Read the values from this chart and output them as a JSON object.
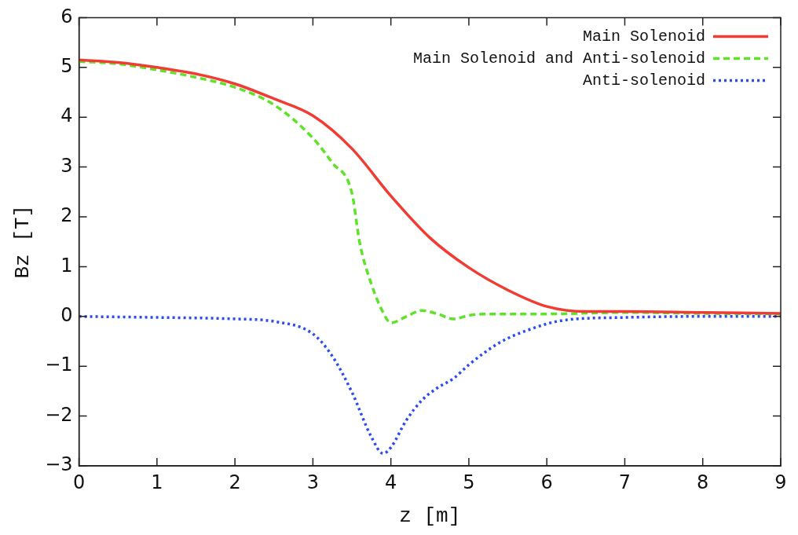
{
  "chart_data": {
    "type": "line",
    "xlabel": "z [m]",
    "ylabel": "Bz [T]",
    "xlim": [
      0,
      9
    ],
    "xticks": [
      0,
      1,
      2,
      3,
      4,
      5,
      6,
      7,
      8,
      9
    ],
    "ylim": [
      -3,
      6
    ],
    "yticks": [
      -3,
      -2,
      -1,
      0,
      1,
      2,
      3,
      4,
      5,
      6
    ],
    "grid": false,
    "legend": "top right",
    "marker": "none",
    "series": [
      {
        "name": "Main Solenoid",
        "color": "#f03c32",
        "line_style": "solid",
        "x": [
          0,
          0.5,
          1,
          1.5,
          2,
          2.5,
          3,
          3.5,
          4,
          4.5,
          5,
          5.5,
          6,
          6.5,
          7,
          8,
          9
        ],
        "values": [
          5.15,
          5.1,
          5.0,
          4.87,
          4.67,
          4.37,
          4.03,
          3.37,
          2.42,
          1.58,
          0.98,
          0.53,
          0.2,
          0.1,
          0.1,
          0.08,
          0.06
        ]
      },
      {
        "name": "Main Solenoid and Anti-solenoid",
        "color": "#5ee22a",
        "line_style": "dashed",
        "x": [
          0,
          0.5,
          1,
          1.5,
          2,
          2.5,
          3,
          3.25,
          3.5,
          3.6,
          3.75,
          3.9,
          4,
          4.2,
          4.4,
          4.6,
          4.8,
          5,
          5.2,
          6,
          7,
          8,
          9
        ],
        "values": [
          5.12,
          5.07,
          4.95,
          4.8,
          4.6,
          4.25,
          3.58,
          3.08,
          2.48,
          1.48,
          0.65,
          0.08,
          -0.13,
          0.0,
          0.12,
          0.05,
          -0.05,
          0.02,
          0.05,
          0.05,
          0.08,
          0.06,
          0.05
        ]
      },
      {
        "name": "Anti-solenoid",
        "color": "#2a4cf0",
        "line_style": "dotted",
        "x": [
          0,
          1,
          2,
          2.5,
          3,
          3.25,
          3.5,
          3.75,
          3.9,
          4,
          4.2,
          4.4,
          4.6,
          4.8,
          5,
          5.4,
          5.8,
          6.2,
          7,
          8,
          9
        ],
        "values": [
          0,
          -0.02,
          -0.05,
          -0.1,
          -0.35,
          -0.8,
          -1.52,
          -2.42,
          -2.75,
          -2.63,
          -2.08,
          -1.68,
          -1.43,
          -1.25,
          -0.97,
          -0.52,
          -0.25,
          -0.08,
          -0.02,
          0,
          0
        ]
      }
    ]
  }
}
